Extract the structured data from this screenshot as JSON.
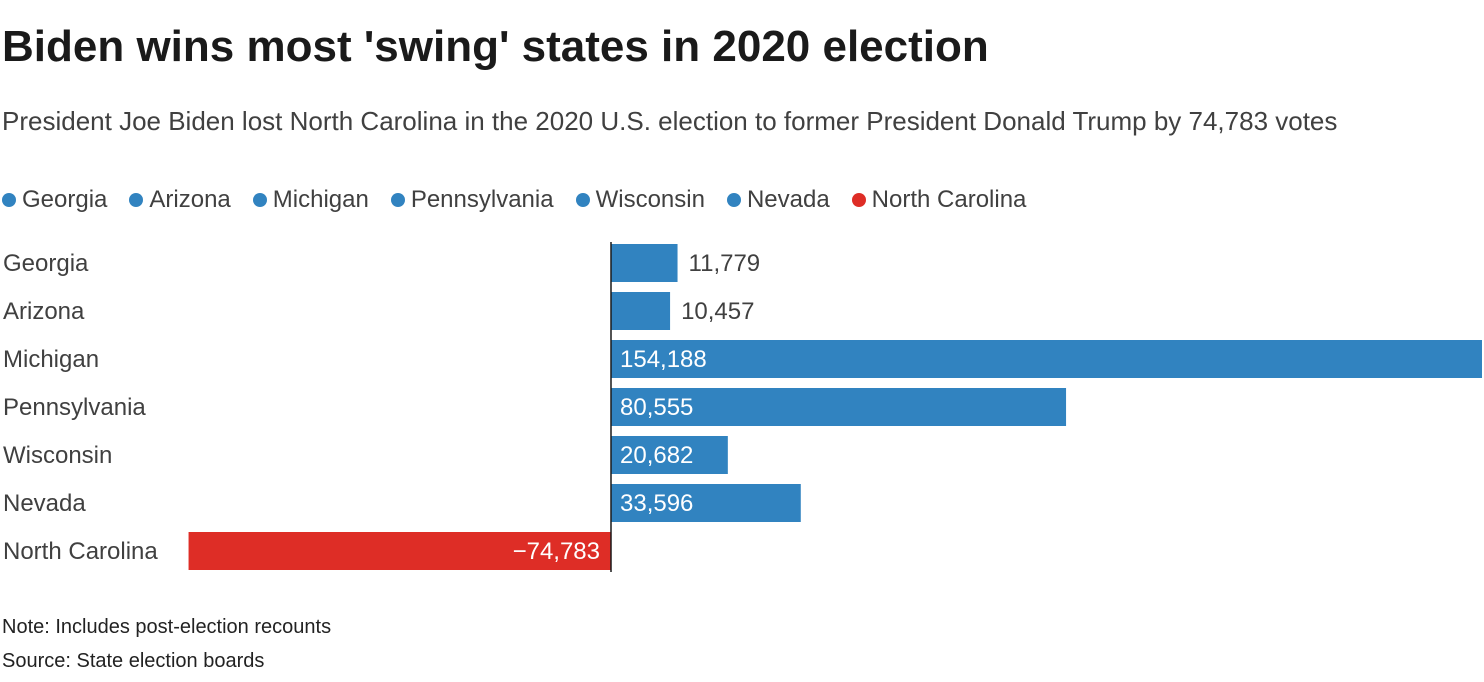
{
  "header": {
    "title": "Biden wins most 'swing' states in 2020 election",
    "subtitle": "President Joe Biden lost North Carolina in the 2020 U.S. election to former President Donald Trump by 74,783 votes"
  },
  "legend": [
    {
      "label": "Georgia",
      "color": "#3183c0"
    },
    {
      "label": "Arizona",
      "color": "#3183c0"
    },
    {
      "label": "Michigan",
      "color": "#3183c0"
    },
    {
      "label": "Pennsylvania",
      "color": "#3183c0"
    },
    {
      "label": "Wisconsin",
      "color": "#3183c0"
    },
    {
      "label": "Nevada",
      "color": "#3183c0"
    },
    {
      "label": "North Carolina",
      "color": "#de2d26"
    }
  ],
  "chart_data": {
    "type": "bar",
    "orientation": "horizontal",
    "title": "Biden wins most 'swing' states in 2020 election",
    "categories": [
      "Georgia",
      "Arizona",
      "Michigan",
      "Pennsylvania",
      "Wisconsin",
      "Nevada",
      "North Carolina"
    ],
    "values": [
      11779,
      10457,
      154188,
      80555,
      20682,
      33596,
      -74783
    ],
    "value_labels": [
      "11,779",
      "10,457",
      "154,188",
      "80,555",
      "20,682",
      "33,596",
      "−74,783"
    ],
    "colors": [
      "#3183c0",
      "#3183c0",
      "#3183c0",
      "#3183c0",
      "#3183c0",
      "#3183c0",
      "#de2d26"
    ],
    "xlim": [
      -74783,
      154188
    ],
    "xlabel": "",
    "ylabel": "",
    "grid": false,
    "legend_position": "top-left"
  },
  "footer": {
    "note": "Note: Includes post-election recounts",
    "source": "Source: State election boards"
  }
}
